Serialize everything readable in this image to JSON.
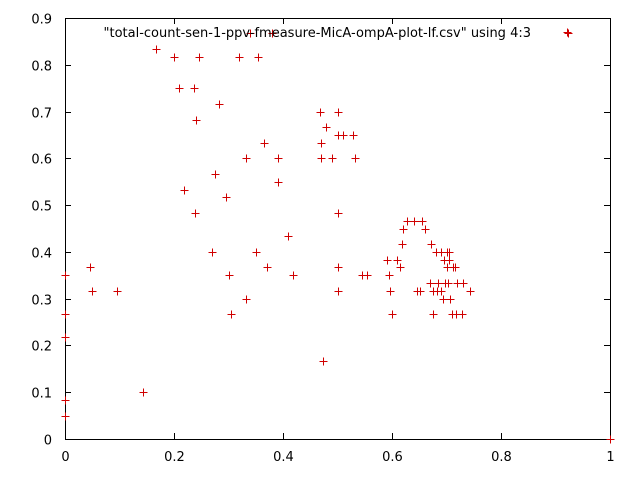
{
  "chart_data": {
    "type": "scatter",
    "title": "",
    "xlabel": "",
    "ylabel": "",
    "xlim": [
      0,
      1
    ],
    "ylim": [
      0,
      0.9
    ],
    "x_ticks": [
      "0",
      "0.2",
      "0.4",
      "0.6",
      "0.8",
      "1"
    ],
    "y_ticks": [
      "0",
      "0.1",
      "0.2",
      "0.3",
      "0.4",
      "0.5",
      "0.6",
      "0.7",
      "0.8",
      "0.9"
    ],
    "grid": false,
    "legend": "top-right",
    "marker": "plus",
    "color": "#d00000",
    "series": [
      {
        "name": "\"total-count-sen-1-ppv-fmeasure-MicA-ompA-plot-lf.csv\" using 4:3",
        "points": [
          [
            0.0,
            0.35
          ],
          [
            0.0,
            0.267
          ],
          [
            0.0,
            0.217
          ],
          [
            0.0,
            0.083
          ],
          [
            0.0,
            0.05
          ],
          [
            0.045,
            0.367
          ],
          [
            0.05,
            0.317
          ],
          [
            0.095,
            0.317
          ],
          [
            0.143,
            0.1
          ],
          [
            0.167,
            0.833
          ],
          [
            0.2,
            0.817
          ],
          [
            0.21,
            0.75
          ],
          [
            0.218,
            0.533
          ],
          [
            0.236,
            0.75
          ],
          [
            0.238,
            0.483
          ],
          [
            0.24,
            0.683
          ],
          [
            0.245,
            0.817
          ],
          [
            0.27,
            0.4
          ],
          [
            0.275,
            0.567
          ],
          [
            0.282,
            0.717
          ],
          [
            0.295,
            0.517
          ],
          [
            0.3,
            0.35
          ],
          [
            0.305,
            0.267
          ],
          [
            0.32,
            0.817
          ],
          [
            0.333,
            0.6
          ],
          [
            0.333,
            0.3
          ],
          [
            0.34,
            0.867
          ],
          [
            0.35,
            0.4
          ],
          [
            0.355,
            0.817
          ],
          [
            0.365,
            0.633
          ],
          [
            0.37,
            0.367
          ],
          [
            0.38,
            0.867
          ],
          [
            0.39,
            0.6
          ],
          [
            0.39,
            0.55
          ],
          [
            0.41,
            0.433
          ],
          [
            0.418,
            0.35
          ],
          [
            0.468,
            0.7
          ],
          [
            0.47,
            0.633
          ],
          [
            0.47,
            0.6
          ],
          [
            0.473,
            0.167
          ],
          [
            0.478,
            0.667
          ],
          [
            0.49,
            0.6
          ],
          [
            0.5,
            0.7
          ],
          [
            0.5,
            0.65
          ],
          [
            0.5,
            0.483
          ],
          [
            0.5,
            0.367
          ],
          [
            0.5,
            0.317
          ],
          [
            0.51,
            0.65
          ],
          [
            0.528,
            0.65
          ],
          [
            0.533,
            0.6
          ],
          [
            0.545,
            0.35
          ],
          [
            0.555,
            0.35
          ],
          [
            0.59,
            0.383
          ],
          [
            0.595,
            0.35
          ],
          [
            0.597,
            0.317
          ],
          [
            0.6,
            0.267
          ],
          [
            0.61,
            0.383
          ],
          [
            0.615,
            0.367
          ],
          [
            0.618,
            0.417
          ],
          [
            0.62,
            0.45
          ],
          [
            0.628,
            0.467
          ],
          [
            0.64,
            0.467
          ],
          [
            0.645,
            0.317
          ],
          [
            0.652,
            0.317
          ],
          [
            0.655,
            0.467
          ],
          [
            0.66,
            0.45
          ],
          [
            0.67,
            0.333
          ],
          [
            0.672,
            0.417
          ],
          [
            0.675,
            0.267
          ],
          [
            0.676,
            0.317
          ],
          [
            0.68,
            0.4
          ],
          [
            0.683,
            0.317
          ],
          [
            0.684,
            0.333
          ],
          [
            0.69,
            0.4
          ],
          [
            0.69,
            0.317
          ],
          [
            0.693,
            0.3
          ],
          [
            0.695,
            0.383
          ],
          [
            0.698,
            0.333
          ],
          [
            0.7,
            0.4
          ],
          [
            0.7,
            0.367
          ],
          [
            0.702,
            0.333
          ],
          [
            0.704,
            0.383
          ],
          [
            0.705,
            0.4
          ],
          [
            0.706,
            0.3
          ],
          [
            0.71,
            0.267
          ],
          [
            0.712,
            0.367
          ],
          [
            0.715,
            0.367
          ],
          [
            0.718,
            0.267
          ],
          [
            0.72,
            0.333
          ],
          [
            0.728,
            0.267
          ],
          [
            0.73,
            0.333
          ],
          [
            0.744,
            0.317
          ],
          [
            0.923,
            0.867
          ],
          [
            1.0,
            0.0
          ]
        ]
      }
    ]
  }
}
